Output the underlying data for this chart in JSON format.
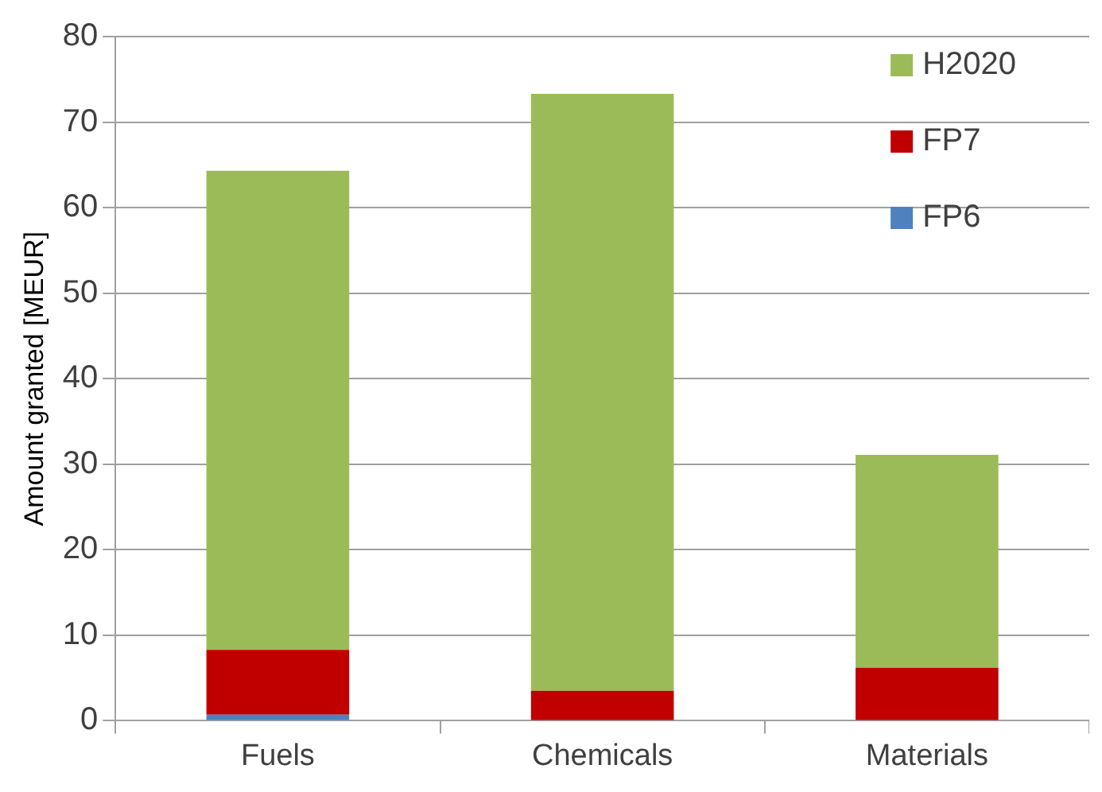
{
  "chart_data": {
    "type": "bar",
    "ylabel": "Amount granted [MEUR]",
    "categories": [
      "Fuels",
      "Chemicals",
      "Materials"
    ],
    "series": [
      {
        "name": "FP6",
        "color": "#4f81bd",
        "values": [
          0.7,
          0,
          0
        ]
      },
      {
        "name": "FP7",
        "color": "#c00000",
        "values": [
          7.6,
          3.5,
          6.2
        ]
      },
      {
        "name": "H2020",
        "color": "#9bbb59",
        "values": [
          56.0,
          69.8,
          24.9
        ]
      }
    ],
    "stacked": true,
    "ylim": [
      0,
      80
    ],
    "yticks": [
      0,
      10,
      20,
      30,
      40,
      50,
      60,
      70,
      80
    ],
    "grid": "y",
    "legend": "top right"
  }
}
